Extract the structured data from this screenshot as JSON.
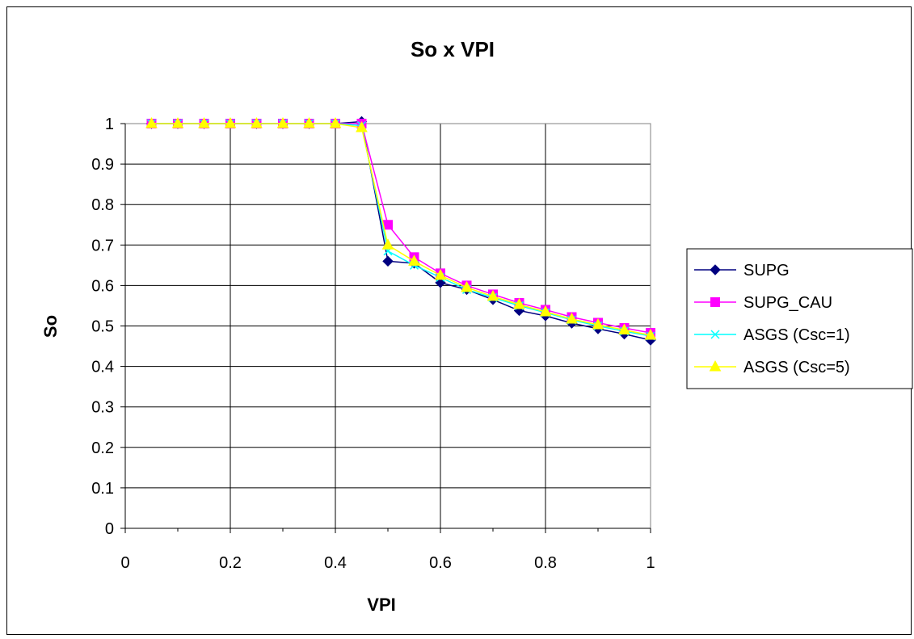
{
  "chart_data": {
    "type": "line",
    "title": "So x VPI",
    "xlabel": "VPI",
    "ylabel": "So",
    "xlim": [
      0,
      1
    ],
    "ylim": [
      0,
      1
    ],
    "xticks": [
      "0",
      "0.2",
      "0.4",
      "0.6",
      "0.8",
      "1"
    ],
    "yticks": [
      "0",
      "0.1",
      "0.2",
      "0.3",
      "0.4",
      "0.5",
      "0.6",
      "0.7",
      "0.8",
      "0.9",
      "1"
    ],
    "grid": true,
    "legend_position": "right",
    "x": [
      0.05,
      0.1,
      0.15,
      0.2,
      0.25,
      0.3,
      0.35,
      0.4,
      0.45,
      0.5,
      0.55,
      0.6,
      0.65,
      0.7,
      0.75,
      0.8,
      0.85,
      0.9,
      0.95,
      1.0
    ],
    "series": [
      {
        "name": "SUPG",
        "color": "#000080",
        "marker": "diamond",
        "values": [
          1,
          1,
          1,
          1,
          1,
          1,
          1,
          1,
          1.005,
          0.66,
          0.655,
          0.607,
          0.59,
          0.565,
          0.538,
          0.525,
          0.507,
          0.493,
          0.48,
          0.465
        ]
      },
      {
        "name": "SUPG_CAU",
        "color": "#ff00ff",
        "marker": "square",
        "values": [
          1,
          1,
          1,
          1,
          1,
          1,
          1,
          1,
          1,
          0.75,
          0.67,
          0.63,
          0.6,
          0.578,
          0.557,
          0.54,
          0.522,
          0.508,
          0.495,
          0.483
        ]
      },
      {
        "name": "ASGS (Csc=1)",
        "color": "#00ffff",
        "marker": "x",
        "values": [
          1,
          1,
          1,
          1,
          1,
          1,
          1,
          1,
          0.995,
          0.685,
          0.65,
          0.62,
          0.59,
          0.57,
          0.55,
          0.533,
          0.515,
          0.5,
          0.487,
          0.475
        ]
      },
      {
        "name": "ASGS (Csc=5)",
        "color": "#ffff00",
        "marker": "triangle",
        "values": [
          1,
          1,
          1,
          1,
          1,
          1,
          1,
          1,
          0.99,
          0.7,
          0.66,
          0.625,
          0.595,
          0.573,
          0.553,
          0.535,
          0.517,
          0.503,
          0.49,
          0.477
        ]
      }
    ]
  }
}
